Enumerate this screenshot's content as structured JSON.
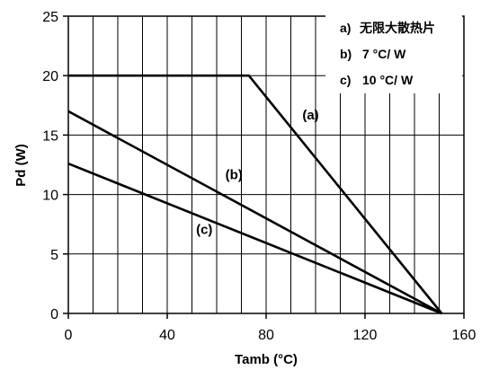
{
  "chart_data": {
    "type": "line",
    "xlabel": "Tamb (°C)",
    "ylabel": "Pd (W)",
    "xlim": [
      0,
      160
    ],
    "ylim": [
      0,
      25
    ],
    "xticks": [
      0,
      40,
      80,
      120,
      160
    ],
    "yticks": [
      0,
      5,
      10,
      15,
      20,
      25
    ],
    "xtick_labels": [
      "0",
      "40",
      "80",
      "120",
      "160"
    ],
    "ytick_labels": [
      "0",
      "5",
      "10",
      "15",
      "20",
      "25"
    ],
    "grid": true,
    "grid_x_minor_step": 10,
    "legend_position": "top-right",
    "legend": [
      {
        "key": "a)",
        "text": "无限大散热片"
      },
      {
        "key": "b)",
        "text": "7 °C/ W"
      },
      {
        "key": "c)",
        "text": "10 °C/ W"
      }
    ],
    "series": [
      {
        "name": "(a)",
        "x": [
          0,
          73,
          151
        ],
        "y": [
          20,
          20,
          0
        ]
      },
      {
        "name": "(b)",
        "x": [
          0,
          151
        ],
        "y": [
          17,
          0
        ]
      },
      {
        "name": "(c)",
        "x": [
          0,
          151
        ],
        "y": [
          12.6,
          0
        ]
      }
    ],
    "curve_labels": [
      {
        "text": "(a)",
        "x": 98,
        "y": 16.3
      },
      {
        "text": "(b)",
        "x": 67,
        "y": 11.3
      },
      {
        "text": "(c)",
        "x": 55,
        "y": 6.7
      }
    ]
  }
}
